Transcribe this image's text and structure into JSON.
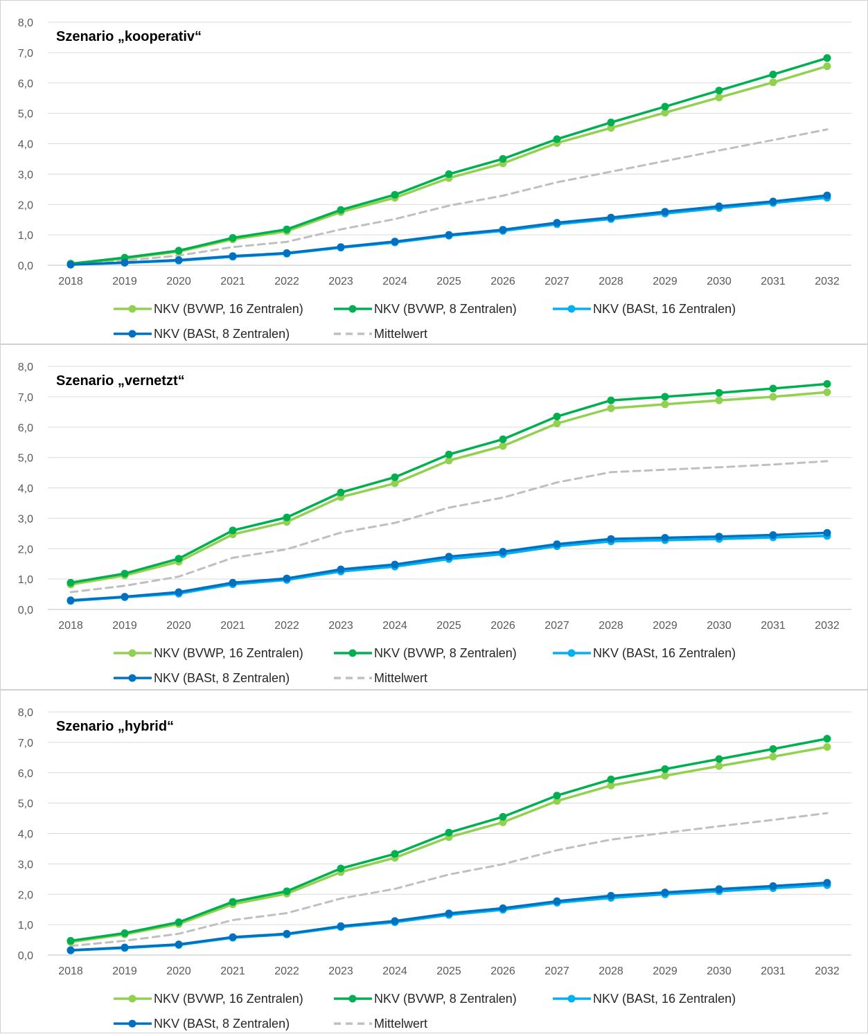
{
  "chart_data": [
    {
      "type": "line",
      "title": "Szenario „kooperativ“",
      "x": [
        "2018",
        "2019",
        "2020",
        "2021",
        "2022",
        "2023",
        "2024",
        "2025",
        "2026",
        "2027",
        "2028",
        "2029",
        "2030",
        "2031",
        "2032"
      ],
      "y_ticks": [
        "0,0",
        "1,0",
        "2,0",
        "3,0",
        "4,0",
        "5,0",
        "6,0",
        "7,0",
        "8,0"
      ],
      "ylim": [
        0,
        8
      ],
      "grid": true,
      "legend_position": "bottom",
      "series": [
        {
          "name": "NKV (BVWP, 16 Zentralen)",
          "color": "#92d050",
          "dashed": false,
          "markers": true,
          "values": [
            0.05,
            0.22,
            0.45,
            0.85,
            1.12,
            1.75,
            2.22,
            2.87,
            3.35,
            4.02,
            4.52,
            5.02,
            5.52,
            6.02,
            6.55
          ]
        },
        {
          "name": "NKV (BVWP, 8 Zentralen)",
          "color": "#00b050",
          "dashed": false,
          "markers": true,
          "values": [
            0.05,
            0.25,
            0.48,
            0.9,
            1.18,
            1.82,
            2.32,
            3.0,
            3.5,
            4.15,
            4.7,
            5.22,
            5.75,
            6.28,
            6.82
          ]
        },
        {
          "name": "NKV (BASt, 16 Zentralen)",
          "color": "#00b0f0",
          "dashed": false,
          "markers": true,
          "values": [
            0.02,
            0.08,
            0.15,
            0.28,
            0.38,
            0.58,
            0.75,
            0.97,
            1.13,
            1.35,
            1.52,
            1.7,
            1.88,
            2.05,
            2.22
          ]
        },
        {
          "name": "NKV (BASt, 8 Zentralen)",
          "color": "#0070c0",
          "dashed": false,
          "markers": true,
          "values": [
            0.02,
            0.09,
            0.17,
            0.3,
            0.4,
            0.6,
            0.78,
            1.0,
            1.17,
            1.4,
            1.57,
            1.76,
            1.94,
            2.1,
            2.3
          ]
        },
        {
          "name": "Mittelwert",
          "color": "#bfbfbf",
          "dashed": true,
          "markers": false,
          "values": [
            0.03,
            0.15,
            0.32,
            0.6,
            0.77,
            1.18,
            1.52,
            1.96,
            2.29,
            2.73,
            3.08,
            3.43,
            3.78,
            4.12,
            4.47
          ]
        }
      ]
    },
    {
      "type": "line",
      "title": "Szenario „vernetzt“",
      "x": [
        "2018",
        "2019",
        "2020",
        "2021",
        "2022",
        "2023",
        "2024",
        "2025",
        "2026",
        "2027",
        "2028",
        "2029",
        "2030",
        "2031",
        "2032"
      ],
      "y_ticks": [
        "0,0",
        "1,0",
        "2,0",
        "3,0",
        "4,0",
        "5,0",
        "6,0",
        "7,0",
        "8,0"
      ],
      "ylim": [
        0,
        8
      ],
      "grid": true,
      "legend_position": "bottom",
      "series": [
        {
          "name": "NKV (BVWP, 16 Zentralen)",
          "color": "#92d050",
          "dashed": false,
          "markers": true,
          "values": [
            0.82,
            1.12,
            1.57,
            2.47,
            2.88,
            3.7,
            4.15,
            4.9,
            5.38,
            6.12,
            6.62,
            6.75,
            6.88,
            7.0,
            7.15
          ]
        },
        {
          "name": "NKV (BVWP, 8 Zentralen)",
          "color": "#00b050",
          "dashed": false,
          "markers": true,
          "values": [
            0.88,
            1.18,
            1.67,
            2.6,
            3.03,
            3.85,
            4.35,
            5.1,
            5.6,
            6.35,
            6.88,
            7.0,
            7.13,
            7.27,
            7.42
          ]
        },
        {
          "name": "NKV (BASt, 16 Zentralen)",
          "color": "#00b0f0",
          "dashed": false,
          "markers": true,
          "values": [
            0.28,
            0.4,
            0.52,
            0.83,
            0.97,
            1.25,
            1.41,
            1.66,
            1.82,
            2.08,
            2.24,
            2.28,
            2.32,
            2.37,
            2.42
          ]
        },
        {
          "name": "NKV (BASt, 8 Zentralen)",
          "color": "#0070c0",
          "dashed": false,
          "markers": true,
          "values": [
            0.3,
            0.42,
            0.57,
            0.88,
            1.02,
            1.32,
            1.48,
            1.74,
            1.9,
            2.15,
            2.32,
            2.36,
            2.4,
            2.45,
            2.52
          ]
        },
        {
          "name": "Mittelwert",
          "color": "#bfbfbf",
          "dashed": true,
          "markers": false,
          "values": [
            0.57,
            0.78,
            1.08,
            1.7,
            1.98,
            2.53,
            2.85,
            3.35,
            3.68,
            4.18,
            4.52,
            4.6,
            4.68,
            4.77,
            4.88
          ]
        }
      ]
    },
    {
      "type": "line",
      "title": "Szenario „hybrid“",
      "x": [
        "2018",
        "2019",
        "2020",
        "2021",
        "2022",
        "2023",
        "2024",
        "2025",
        "2026",
        "2027",
        "2028",
        "2029",
        "2030",
        "2031",
        "2032"
      ],
      "y_ticks": [
        "0,0",
        "1,0",
        "2,0",
        "3,0",
        "4,0",
        "5,0",
        "6,0",
        "7,0",
        "8,0"
      ],
      "ylim": [
        0,
        8
      ],
      "grid": true,
      "legend_position": "bottom",
      "series": [
        {
          "name": "NKV (BVWP, 16 Zentralen)",
          "color": "#92d050",
          "dashed": false,
          "markers": true,
          "values": [
            0.43,
            0.68,
            1.02,
            1.67,
            2.02,
            2.73,
            3.2,
            3.88,
            4.37,
            5.07,
            5.58,
            5.9,
            6.22,
            6.53,
            6.85
          ]
        },
        {
          "name": "NKV (BVWP, 8 Zentralen)",
          "color": "#00b050",
          "dashed": false,
          "markers": true,
          "values": [
            0.47,
            0.72,
            1.08,
            1.75,
            2.1,
            2.85,
            3.33,
            4.03,
            4.55,
            5.25,
            5.78,
            6.12,
            6.45,
            6.78,
            7.12
          ]
        },
        {
          "name": "NKV (BASt, 16 Zentralen)",
          "color": "#00b0f0",
          "dashed": false,
          "markers": true,
          "values": [
            0.15,
            0.23,
            0.33,
            0.57,
            0.68,
            0.92,
            1.08,
            1.32,
            1.49,
            1.72,
            1.88,
            2.0,
            2.1,
            2.2,
            2.3
          ]
        },
        {
          "name": "NKV (BASt, 8 Zentralen)",
          "color": "#0070c0",
          "dashed": false,
          "markers": true,
          "values": [
            0.16,
            0.25,
            0.35,
            0.59,
            0.7,
            0.95,
            1.12,
            1.37,
            1.54,
            1.77,
            1.95,
            2.06,
            2.17,
            2.27,
            2.38
          ]
        },
        {
          "name": "Mittelwert",
          "color": "#bfbfbf",
          "dashed": true,
          "markers": false,
          "values": [
            0.3,
            0.47,
            0.7,
            1.15,
            1.38,
            1.86,
            2.18,
            2.65,
            2.99,
            3.45,
            3.8,
            4.02,
            4.24,
            4.45,
            4.67
          ]
        }
      ]
    }
  ]
}
